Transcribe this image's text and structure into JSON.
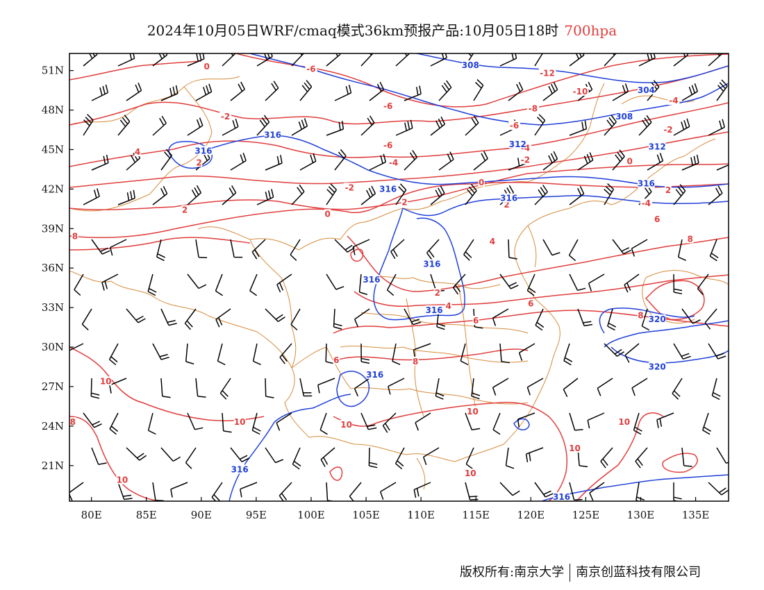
{
  "title": {
    "main": "2024年10月05日WRF/cmaq模式36km预报产品:10月05日18时",
    "level": "700hpa",
    "level_color": "#e03c3c"
  },
  "axes": {
    "lon_min": 78,
    "lon_max": 138,
    "lat_min": 18.3,
    "lat_max": 52.3,
    "x_ticks": [
      "80E",
      "85E",
      "90E",
      "95E",
      "100E",
      "105E",
      "110E",
      "115E",
      "120E",
      "125E",
      "130E",
      "135E"
    ],
    "x_tick_values": [
      80,
      85,
      90,
      95,
      100,
      105,
      110,
      115,
      120,
      125,
      130,
      135
    ],
    "y_ticks": [
      "51N",
      "48N",
      "45N",
      "42N",
      "39N",
      "36N",
      "33N",
      "30N",
      "27N",
      "24N",
      "21N"
    ],
    "y_tick_values": [
      51,
      48,
      45,
      42,
      39,
      36,
      33,
      30,
      27,
      24,
      21
    ]
  },
  "colors": {
    "temperature": "#e03c3c",
    "height": "#1f3fd8",
    "border": "#d68a3a",
    "wind": "#000000"
  },
  "legend_items": {
    "temperature_contours": "temperature-isotherms",
    "height_contours": "geopotential-height",
    "wind_barbs": "wind-barb-icon"
  },
  "temp_labels": [
    {
      "t": "0",
      "lon": 90.5,
      "lat": 51.2
    },
    {
      "t": "-6",
      "lon": 100,
      "lat": 51.0
    },
    {
      "t": "-12",
      "lon": 121.5,
      "lat": 50.7
    },
    {
      "t": "-10",
      "lon": 124.5,
      "lat": 49.3
    },
    {
      "t": "-8",
      "lon": 120.2,
      "lat": 48.0
    },
    {
      "t": "-6",
      "lon": 107,
      "lat": 48.2
    },
    {
      "t": "-6",
      "lon": 118.5,
      "lat": 46.7
    },
    {
      "t": "-4",
      "lon": 133,
      "lat": 48.6
    },
    {
      "t": "-2",
      "lon": 92.2,
      "lat": 47.4
    },
    {
      "t": "-2",
      "lon": 132.5,
      "lat": 46.4
    },
    {
      "t": "-6",
      "lon": 107,
      "lat": 45.2
    },
    {
      "t": "-4",
      "lon": 119.5,
      "lat": 45.0
    },
    {
      "t": "-4",
      "lon": 107.5,
      "lat": 43.9
    },
    {
      "t": "-2",
      "lon": 119.5,
      "lat": 44.1
    },
    {
      "t": "0",
      "lon": 129,
      "lat": 44.0
    },
    {
      "t": "4",
      "lon": 84.2,
      "lat": 44.7
    },
    {
      "t": "2",
      "lon": 89.8,
      "lat": 43.9
    },
    {
      "t": "-2",
      "lon": 103.5,
      "lat": 42.0
    },
    {
      "t": "0",
      "lon": 115.5,
      "lat": 42.4
    },
    {
      "t": "2",
      "lon": 132.5,
      "lat": 41.8
    },
    {
      "t": "-4",
      "lon": 130.5,
      "lat": 40.8
    },
    {
      "t": "2",
      "lon": 88.5,
      "lat": 40.3
    },
    {
      "t": "0",
      "lon": 101.5,
      "lat": 40.0
    },
    {
      "t": "2",
      "lon": 108.5,
      "lat": 40.9
    },
    {
      "t": "2",
      "lon": 117.8,
      "lat": 40.7
    },
    {
      "t": "6",
      "lon": 131.5,
      "lat": 39.6
    },
    {
      "t": "8",
      "lon": 78.5,
      "lat": 38.3
    },
    {
      "t": "4",
      "lon": 116.5,
      "lat": 37.9
    },
    {
      "t": "8",
      "lon": 134.5,
      "lat": 38.1
    },
    {
      "t": "2",
      "lon": 111.5,
      "lat": 34.0
    },
    {
      "t": "4",
      "lon": 112.5,
      "lat": 33.0
    },
    {
      "t": "6",
      "lon": 120,
      "lat": 33.2
    },
    {
      "t": "6",
      "lon": 115,
      "lat": 31.9
    },
    {
      "t": "8",
      "lon": 130,
      "lat": 32.3
    },
    {
      "t": "8",
      "lon": 109.5,
      "lat": 28.8
    },
    {
      "t": "6",
      "lon": 102.3,
      "lat": 28.9
    },
    {
      "t": "10",
      "lon": 81.3,
      "lat": 27.3
    },
    {
      "t": "10",
      "lon": 93.5,
      "lat": 24.2
    },
    {
      "t": "10",
      "lon": 103.2,
      "lat": 24.0
    },
    {
      "t": "10",
      "lon": 114.7,
      "lat": 25.0
    },
    {
      "t": "10",
      "lon": 128.5,
      "lat": 24.2
    },
    {
      "t": "10",
      "lon": 124,
      "lat": 22.2
    },
    {
      "t": "10",
      "lon": 114.5,
      "lat": 20.3
    },
    {
      "t": "10",
      "lon": 82.8,
      "lat": 19.8
    },
    {
      "t": "8",
      "lon": 78.3,
      "lat": 24.2
    }
  ],
  "height_labels": [
    {
      "t": "308",
      "lon": 114.5,
      "lat": 51.3
    },
    {
      "t": "304",
      "lon": 130.5,
      "lat": 49.4
    },
    {
      "t": "308",
      "lon": 128.5,
      "lat": 47.4
    },
    {
      "t": "312",
      "lon": 118.8,
      "lat": 45.3
    },
    {
      "t": "312",
      "lon": 131.5,
      "lat": 45.1
    },
    {
      "t": "316",
      "lon": 96.5,
      "lat": 46.0
    },
    {
      "t": "316",
      "lon": 90.2,
      "lat": 44.8
    },
    {
      "t": "316",
      "lon": 107,
      "lat": 41.9
    },
    {
      "t": "316",
      "lon": 118,
      "lat": 41.2
    },
    {
      "t": "316",
      "lon": 130.5,
      "lat": 42.3
    },
    {
      "t": "316",
      "lon": 111,
      "lat": 36.2
    },
    {
      "t": "316",
      "lon": 105.5,
      "lat": 35.0
    },
    {
      "t": "316",
      "lon": 111.2,
      "lat": 32.7
    },
    {
      "t": "320",
      "lon": 131.5,
      "lat": 32.0
    },
    {
      "t": "320",
      "lon": 131.5,
      "lat": 28.4
    },
    {
      "t": "316",
      "lon": 105.8,
      "lat": 27.8
    },
    {
      "t": "316",
      "lon": 93.5,
      "lat": 20.6
    },
    {
      "t": "316",
      "lon": 122.8,
      "lat": 18.5
    }
  ],
  "footer": {
    "left": "版权所有:南京大学",
    "right": "南京创蓝科技有限公司"
  }
}
